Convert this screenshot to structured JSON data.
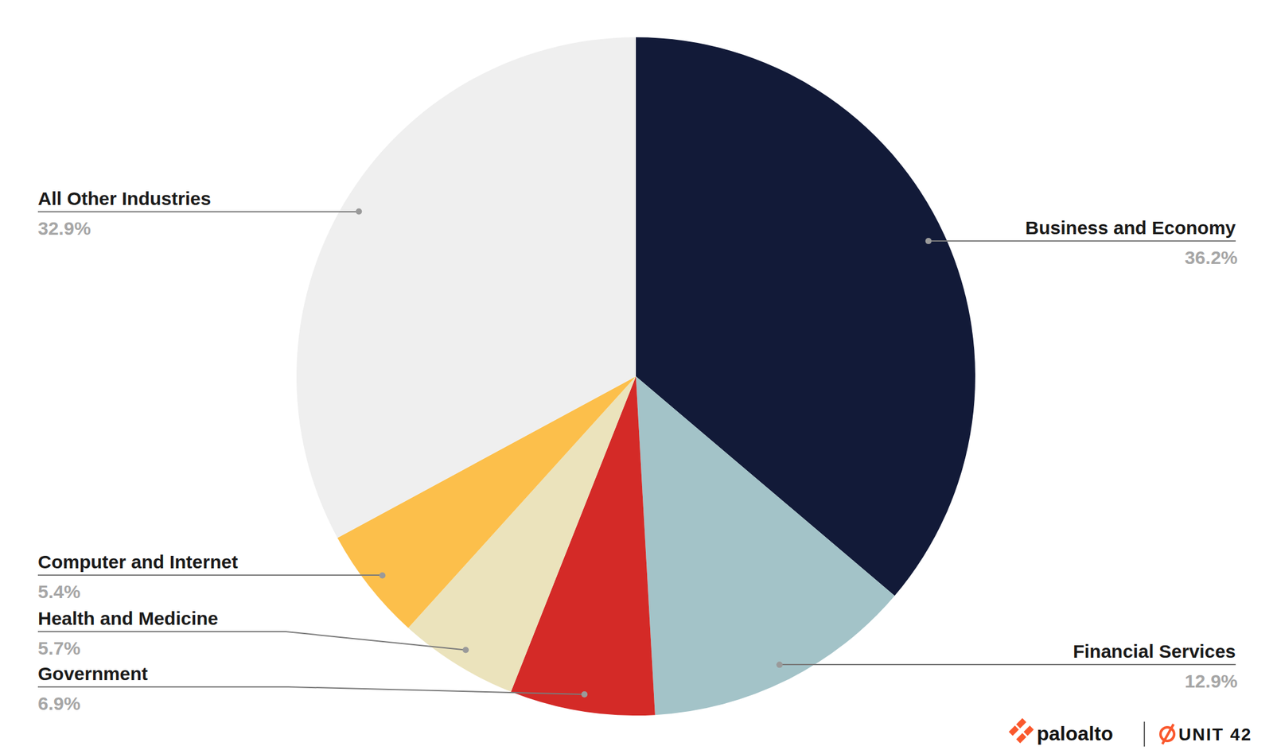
{
  "chart_data": {
    "type": "pie",
    "categories": [
      "Business and Economy",
      "Financial Services",
      "Government",
      "Health and Medicine",
      "Computer and Internet",
      "All Other Industries"
    ],
    "values": [
      36.2,
      12.9,
      6.9,
      5.7,
      5.4,
      32.9
    ],
    "value_labels": [
      "36.2%",
      "12.9%",
      "6.9%",
      "5.7%",
      "5.4%",
      "32.9%"
    ],
    "colors": [
      "#121a38",
      "#a3c3c8",
      "#d42a27",
      "#ebe3bc",
      "#fcbf4b",
      "#efefef"
    ],
    "data_labels": true,
    "annotations": [
      "paloalto",
      "UNIT 42"
    ]
  }
}
